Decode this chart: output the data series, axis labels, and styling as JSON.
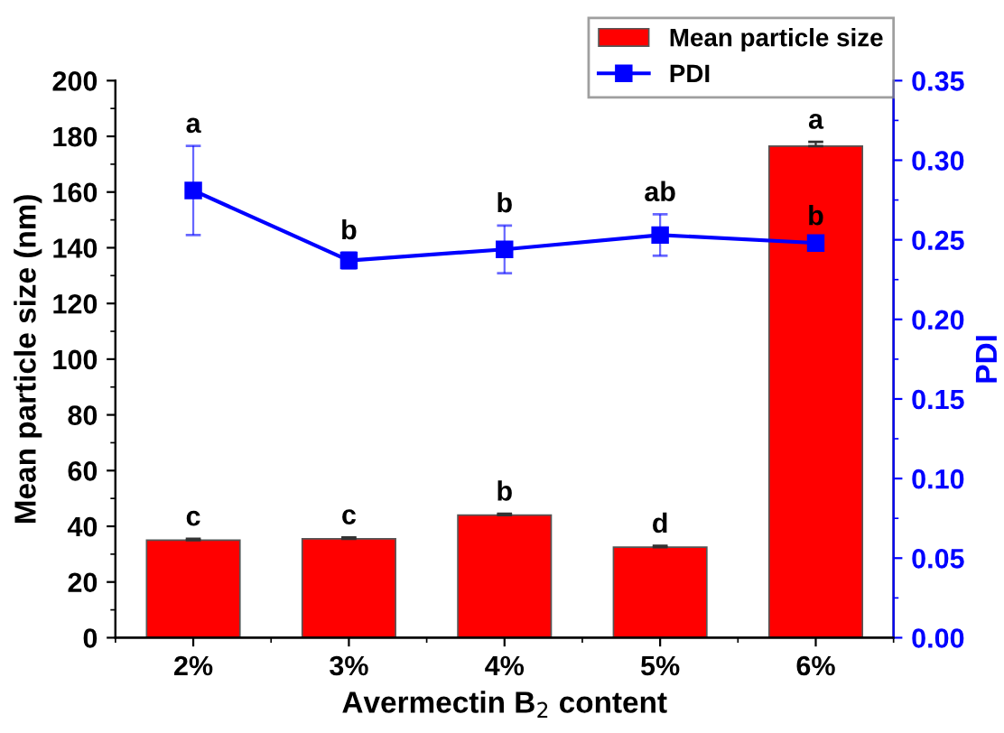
{
  "chart_data": {
    "type": "bar",
    "xlabel": "Avermectin B$_{2}$ content",
    "ylabel": "Mean particle size (nm)",
    "y2label": "PDI",
    "categories": [
      "2%",
      "3%",
      "4%",
      "5%",
      "6%"
    ],
    "series": [
      {
        "name": "Mean particle size",
        "color": "#ff0000",
        "values": [
          35,
          35.5,
          44,
          32.5,
          176.5
        ],
        "errors": [
          0.5,
          0.5,
          0.5,
          0.5,
          1.5
        ],
        "value_labels": [
          "c",
          "c",
          "b",
          "d",
          "a"
        ]
      },
      {
        "name": "PDI",
        "type": "line",
        "axis": "y2",
        "color": "#0000ff",
        "marker": "square",
        "values": [
          0.281,
          0.237,
          0.244,
          0.253,
          0.248
        ],
        "errors": [
          0.028,
          0.005,
          0.015,
          0.013,
          0.003
        ],
        "value_labels": [
          "a",
          "b",
          "b",
          "ab",
          "b"
        ]
      }
    ],
    "ylim": [
      0,
      200
    ],
    "yticks": [
      0,
      20,
      40,
      60,
      80,
      100,
      120,
      140,
      160,
      180,
      200
    ],
    "y2lim": [
      0,
      0.35
    ],
    "y2ticks": [
      {
        "value": 0,
        "label": "0.00"
      },
      {
        "value": 0.05,
        "label": "0.05"
      },
      {
        "value": 0.1,
        "label": "0.10"
      },
      {
        "value": 0.15,
        "label": "0.15"
      },
      {
        "value": 0.2,
        "label": "0.20"
      },
      {
        "value": 0.25,
        "label": "0.25"
      },
      {
        "value": 0.3,
        "label": "0.30"
      },
      {
        "value": 0.35,
        "label": "0.35"
      }
    ],
    "legend": "top right",
    "grid": false
  }
}
